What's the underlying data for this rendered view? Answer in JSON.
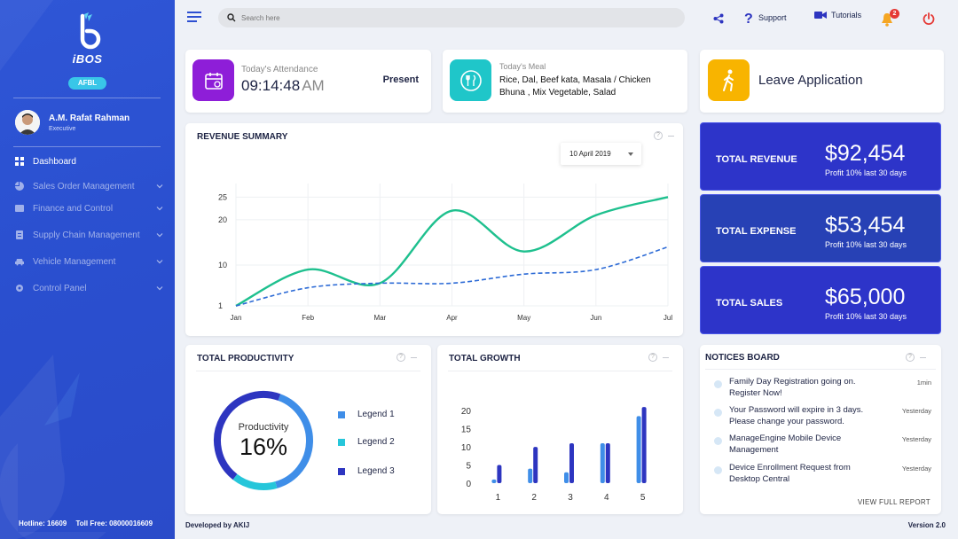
{
  "brand": {
    "name": "iBOS",
    "company": "AFBL"
  },
  "user": {
    "name": "A.M. Rafat Rahman",
    "role": "Executive"
  },
  "nav": [
    {
      "label": "Dashboard",
      "icon": "dashboard-icon",
      "active": true
    },
    {
      "label": "Sales Order Management",
      "icon": "pie-chart-icon"
    },
    {
      "label": "Finance and Control",
      "icon": "finance-icon"
    },
    {
      "label": "Supply Chain Management",
      "icon": "supply-chain-icon"
    },
    {
      "label": "Vehicle Management",
      "icon": "car-icon"
    },
    {
      "label": "Control Panel",
      "icon": "gear-icon"
    }
  ],
  "sidebar_footer": {
    "hotline": "Hotline: 16609",
    "tollfree": "Toll Free: 08000016609"
  },
  "topbar": {
    "search_placeholder": "Search here",
    "support_label": "Support",
    "tutorials_label": "Tutorials",
    "notification_count": "2"
  },
  "attendance": {
    "label": "Today's Attendance",
    "time": "09:14:48",
    "ampm": "AM",
    "status": "Present"
  },
  "meal": {
    "label": "Today's Meal",
    "menu_line1": "Rice, Dal, Beef kata, Masala / Chicken",
    "menu_line2": "Bhuna , Mix Vegetable, Salad"
  },
  "leave": {
    "label": "Leave Application"
  },
  "revenue_summary": {
    "title": "REVENUE SUMMARY",
    "date_select": "10 April 2019"
  },
  "stats": [
    {
      "label": "TOTAL REVENUE",
      "value": "$92,454",
      "sub": "Profit 10% last 30 days"
    },
    {
      "label": "TOTAL EXPENSE",
      "value": "$53,454",
      "sub": "Profit 10% last 30 days"
    },
    {
      "label": "TOTAL SALES",
      "value": "$65,000",
      "sub": "Profit 10% last 30 days"
    }
  ],
  "productivity": {
    "title": "TOTAL PRODUCTIVITY",
    "center_label": "Productivity",
    "center_value": "16%",
    "legend": [
      {
        "label": "Legend 1",
        "color": "#3f8ee8"
      },
      {
        "label": "Legend 2",
        "color": "#26c6da"
      },
      {
        "label": "Legend 3",
        "color": "#2d35c0"
      }
    ]
  },
  "growth": {
    "title": "TOTAL GROWTH"
  },
  "notices": {
    "title": "NOTICES BOARD",
    "items": [
      {
        "text": "Family Day Registration going on. Register Now!",
        "time": "1min"
      },
      {
        "text": "Your Password will expire in 3 days. Please change your password.",
        "time": "Yesterday"
      },
      {
        "text": "ManageEngine Mobile Device Management",
        "time": "Yesterday"
      },
      {
        "text": "Device Enrollment Request from Desktop Central",
        "time": "Yesterday"
      }
    ],
    "view_all": "VIEW FULL REPORT"
  },
  "footer": {
    "developed": "Developed  by AKIJ",
    "version": "Version 2.0"
  },
  "chart_data": [
    {
      "type": "line",
      "categories": [
        "Jan",
        "Feb",
        "Mar",
        "Apr",
        "May",
        "Jun",
        "Jul"
      ],
      "yticks": [
        1,
        10,
        20,
        25
      ],
      "ylim": [
        1,
        28
      ],
      "series": [
        {
          "values": [
            1,
            9,
            6,
            22,
            13,
            21,
            25
          ],
          "color": "#1ec08e",
          "style": "solid"
        },
        {
          "values": [
            1,
            5,
            6,
            6,
            8,
            9,
            14
          ],
          "color": "#2d6bd6",
          "style": "dashed"
        }
      ],
      "grid": true
    },
    {
      "type": "pie",
      "slices": [
        {
          "value": 40,
          "color": "#3f8ee8"
        },
        {
          "value": 15,
          "color": "#26c6da"
        },
        {
          "value": 45,
          "color": "#2d35c0"
        }
      ]
    },
    {
      "type": "bar",
      "categories": [
        "1",
        "2",
        "3",
        "4",
        "5"
      ],
      "yticks": [
        0,
        5,
        10,
        15,
        20
      ],
      "ylim": [
        0,
        22
      ],
      "series": [
        {
          "values": [
            1,
            4,
            3,
            11,
            18.5
          ],
          "color": "#3f8ee8"
        },
        {
          "values": [
            5,
            10,
            11,
            11,
            21
          ],
          "color": "#2d35c0"
        }
      ]
    }
  ]
}
